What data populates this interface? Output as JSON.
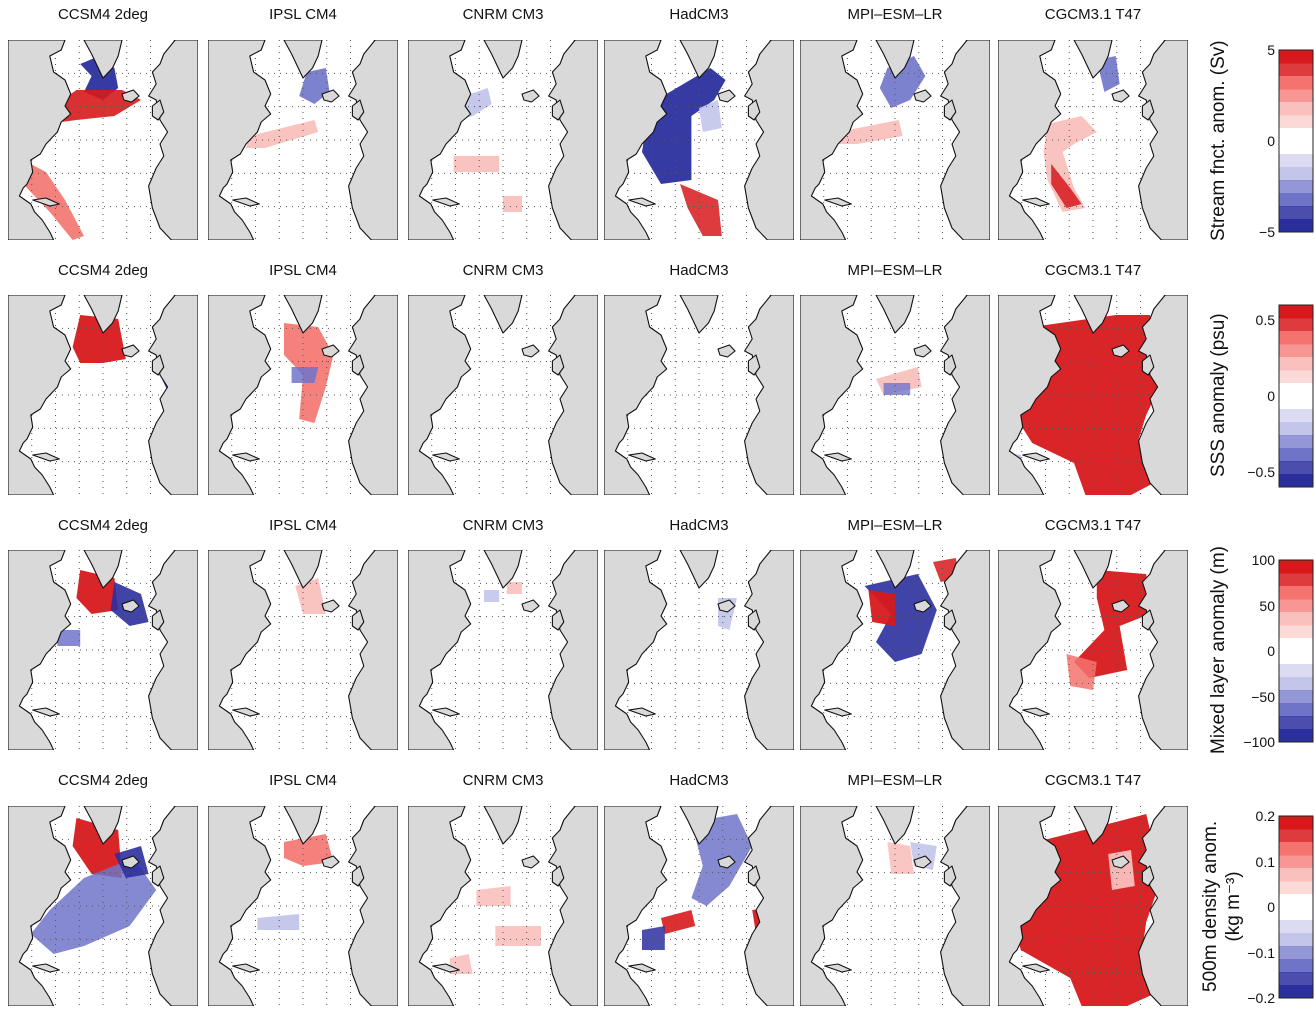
{
  "figure": {
    "models": [
      "CCSM4 2deg",
      "IPSL CM4",
      "CNRM CM3",
      "HadCM3",
      "MPI–ESM–LR",
      "CGCM3.1 T47"
    ],
    "rows": [
      {
        "variable": "stream",
        "colorbar_label": "Stream fnct. anom. (Sv)",
        "colorbar_label_line2": "",
        "ticks": [
          "5",
          "0",
          "−5"
        ],
        "range": [
          -5,
          5
        ]
      },
      {
        "variable": "sss",
        "colorbar_label": "SSS anomaly (psu)",
        "colorbar_label_line2": "",
        "ticks": [
          "0.5",
          "0",
          "−0.5"
        ],
        "range": [
          -0.6,
          0.6
        ]
      },
      {
        "variable": "mld",
        "colorbar_label": "Mixed layer anomaly (m)",
        "colorbar_label_line2": "",
        "ticks": [
          "100",
          "50",
          "0",
          "−50",
          "−100"
        ],
        "range": [
          -100,
          100
        ]
      },
      {
        "variable": "density",
        "colorbar_label": "500m density anom.",
        "colorbar_label_line2": "(kg m⁻³)",
        "ticks": [
          "0.2",
          "0.1",
          "0",
          "−0.1",
          "−0.2"
        ],
        "range": [
          -0.2,
          0.2
        ]
      }
    ],
    "colors": {
      "land": "#d9d9d9",
      "coast": "#111111",
      "red_dark": "#d7191c",
      "red_mid": "#f4736f",
      "red_light": "#f9c0bd",
      "blue_dark": "#2b2f9e",
      "blue_mid": "#6f74c9",
      "blue_light": "#c3c5ea"
    }
  }
}
